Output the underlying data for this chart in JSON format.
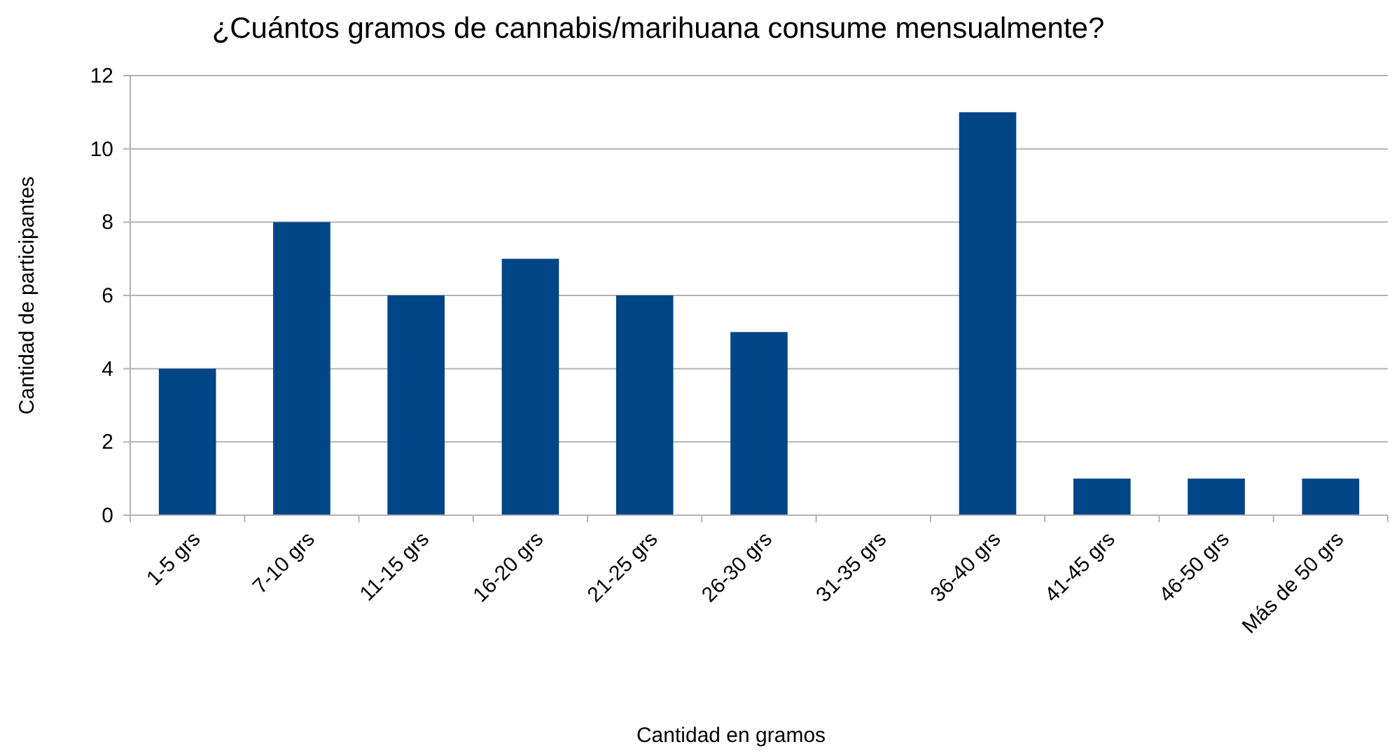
{
  "chart_data": {
    "type": "bar",
    "title": "¿Cuántos gramos de cannabis/marihuana consume mensualmente?",
    "xlabel": "Cantidad en gramos",
    "ylabel": "Cantidad de participantes",
    "categories": [
      "1-5 grs",
      "7-10 grs",
      "11-15 grs",
      "16-20 grs",
      "21-25 grs",
      "26-30 grs",
      "31-35 grs",
      "36-40 grs",
      "41-45 grs",
      "46-50 grs",
      "Más de 50 grs"
    ],
    "values": [
      4,
      8,
      6,
      7,
      6,
      5,
      0,
      11,
      1,
      1,
      1
    ],
    "color": "#004586",
    "ylim": [
      0,
      12
    ],
    "yticks": [
      0,
      2,
      4,
      6,
      8,
      10,
      12
    ],
    "grid": "y"
  }
}
